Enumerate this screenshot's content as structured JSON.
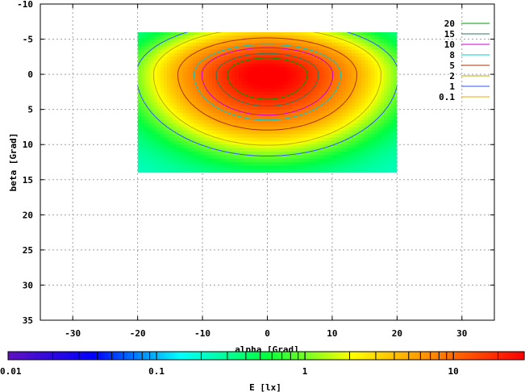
{
  "chart_data": {
    "type": "heatmap",
    "title": "",
    "xlabel": "alpha [Grad]",
    "ylabel": "beta [Grad]",
    "xlim": [
      -35,
      35
    ],
    "ylim": [
      -10,
      35
    ],
    "y_inverted": true,
    "x_ticks": [
      -30,
      -20,
      -10,
      0,
      10,
      20,
      30
    ],
    "y_ticks": [
      -10,
      -5,
      0,
      5,
      10,
      15,
      20,
      25,
      30,
      35
    ],
    "grid": true,
    "data_extent": {
      "x": [
        -20,
        20
      ],
      "y": [
        -6,
        14
      ]
    },
    "peak": {
      "x": 0,
      "y": 0,
      "value": 30
    },
    "background_value": 0.2,
    "legend_position": "top-right",
    "contours": [
      {
        "level": "20",
        "color": "#009900"
      },
      {
        "level": "15",
        "color": "#2a7a5a"
      },
      {
        "level": "10",
        "color": "#cc00cc"
      },
      {
        "level": "8",
        "color": "#00cccc"
      },
      {
        "level": "5",
        "color": "#b03000"
      },
      {
        "level": "2",
        "color": "#bbaa00"
      },
      {
        "level": "1",
        "color": "#3355ff"
      },
      {
        "level": "0.1",
        "color": "#eeaa00"
      }
    ],
    "colorbar": {
      "label": "E [lx]",
      "scale": "log",
      "range": [
        0.01,
        30
      ],
      "tick_labels": [
        "0.01",
        "0.1",
        "1",
        "10"
      ],
      "tick_values": [
        0.01,
        0.1,
        1,
        10
      ],
      "colors": [
        "#6010c0",
        "#0000ff",
        "#00ffff",
        "#00ff40",
        "#ffff00",
        "#ff8000",
        "#ff0000"
      ]
    }
  }
}
